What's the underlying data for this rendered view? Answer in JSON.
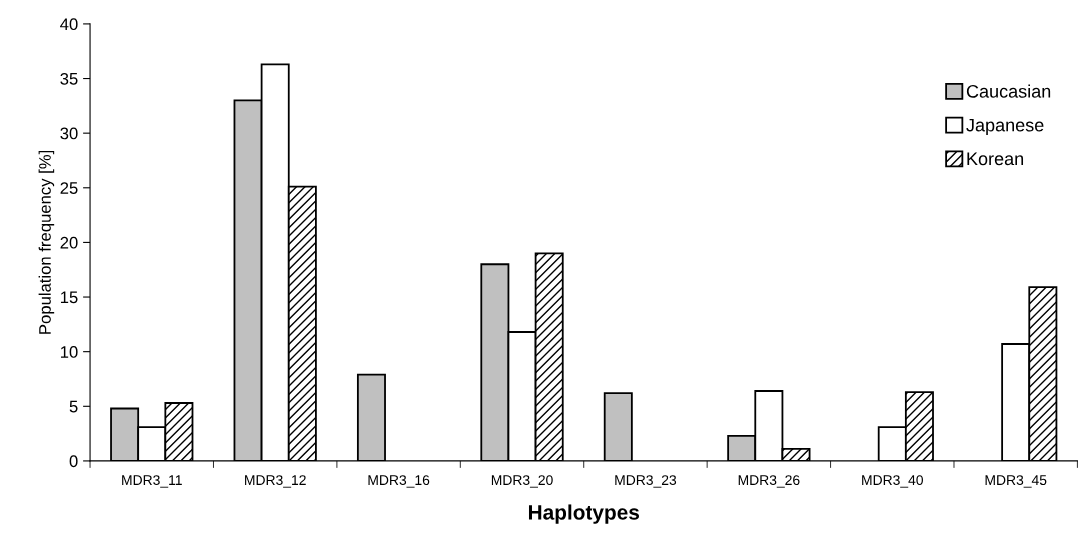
{
  "chart_data": {
    "type": "bar",
    "xlabel": "Haplotypes",
    "ylabel": "Population frequency [%]",
    "categories": [
      "MDR3_11",
      "MDR3_12",
      "MDR3_16",
      "MDR3_20",
      "MDR3_23",
      "MDR3_26",
      "MDR3_40",
      "MDR3_45"
    ],
    "series": [
      {
        "name": "Caucasian",
        "color": "#c0c0c0",
        "values": [
          4.8,
          33.0,
          7.9,
          18.0,
          6.2,
          2.3,
          null,
          null
        ]
      },
      {
        "name": "Japanese",
        "color": "#ffffff",
        "values": [
          3.1,
          36.3,
          null,
          11.8,
          null,
          6.4,
          3.1,
          10.7
        ]
      },
      {
        "name": "Korean",
        "color": "#000000",
        "values": [
          5.3,
          25.1,
          null,
          19.0,
          null,
          1.1,
          6.3,
          15.9
        ]
      }
    ],
    "ylim": [
      0,
      40
    ],
    "yticks": [
      0,
      5,
      10,
      15,
      20,
      25,
      30,
      35,
      40
    ],
    "grid": false,
    "legend": "top right"
  }
}
